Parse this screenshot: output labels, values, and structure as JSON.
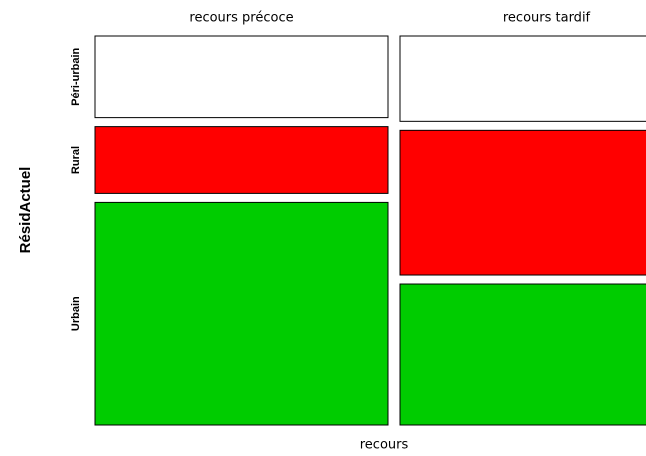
{
  "chart_data": {
    "type": "mosaic",
    "x_label": "recours",
    "y_label": "RésidActuel",
    "categories": [
      "recours précoce",
      "recours tardif"
    ],
    "column_shares": [
      50,
      50
    ],
    "series": [
      {
        "name": "Péri-urbain",
        "color": "#ffffff",
        "values": [
          22,
          23
        ]
      },
      {
        "name": "Rural",
        "color": "#ff0000",
        "values": [
          18,
          39
        ]
      },
      {
        "name": "Urbain",
        "color": "#00cc00",
        "values": [
          60,
          38
        ]
      }
    ]
  }
}
